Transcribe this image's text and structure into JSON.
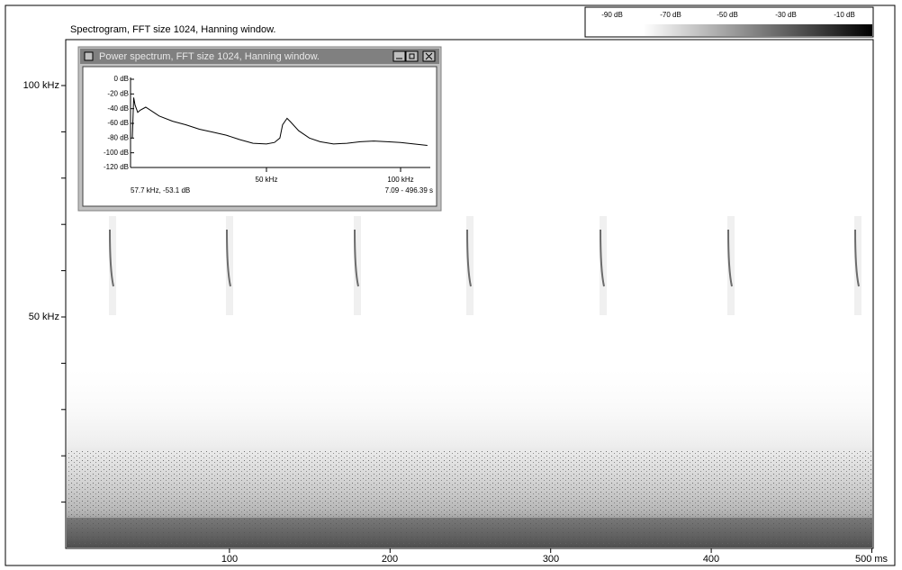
{
  "spectrogram": {
    "title": "Spectrogram, FFT size 1024, Hanning window.",
    "y_labels": [
      "100 kHz",
      "50 kHz"
    ],
    "x_labels": [
      "100",
      "200",
      "300",
      "400",
      "500 ms"
    ]
  },
  "color_scale": {
    "labels": [
      "-90 dB",
      "-70 dB",
      "-50 dB",
      "-30 dB",
      "-10 dB"
    ]
  },
  "power_spectrum": {
    "title": "Power spectrum, FFT size 1024, Hanning window.",
    "y_labels": [
      "0 dB",
      "-20 dB",
      "-40 dB",
      "-60 dB",
      "-80 dB",
      "-100 dB",
      "-120 dB"
    ],
    "x_labels": [
      "50 kHz",
      "100 kHz"
    ],
    "status_left": "57.7 kHz, -53.1 dB",
    "status_right": "7.09 - 496.39 s",
    "curve": {
      "x": [
        0,
        0.5,
        1,
        2,
        3,
        5,
        8,
        10,
        15,
        20,
        25,
        30,
        35,
        40,
        45,
        50,
        53,
        55,
        56,
        57.7,
        59,
        62,
        66,
        70,
        75,
        80,
        85,
        90,
        95,
        100,
        105,
        110
      ],
      "values": [
        -80,
        -25,
        -35,
        -45,
        -42,
        -38,
        -45,
        -50,
        -57,
        -62,
        -68,
        -72,
        -76,
        -82,
        -87,
        -88,
        -86,
        -80,
        -62,
        -53.1,
        -58,
        -70,
        -80,
        -85,
        -88,
        -87,
        -85,
        -84,
        -85,
        -86,
        -88,
        -90
      ]
    }
  }
}
